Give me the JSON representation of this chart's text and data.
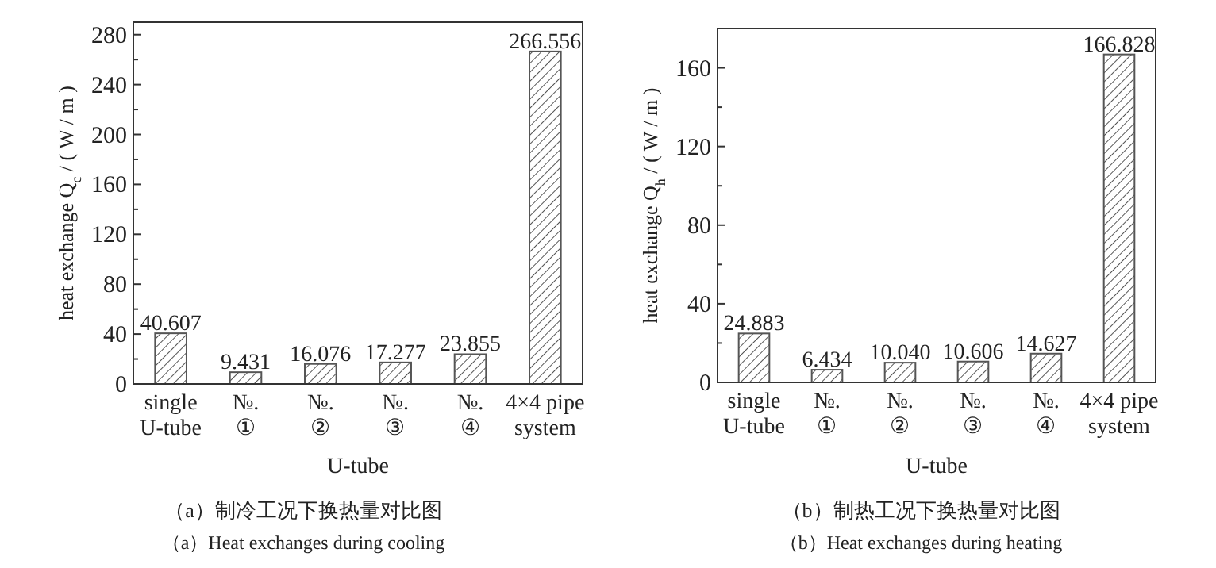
{
  "chart_data": [
    {
      "type": "bar",
      "xlabel": "U-tube",
      "ylabel": "heat exchange Q$_{c}$ / ( W / m )",
      "categories": [
        "single\nU-tube",
        "№.\n①",
        "№.\n②",
        "№.\n③",
        "№.\n④",
        "4×4 pipe\nsystem"
      ],
      "values": [
        40.607,
        9.431,
        16.076,
        17.277,
        23.855,
        266.556
      ],
      "value_labels": [
        "40.607",
        "9.431",
        "16.076",
        "17.277",
        "23.855",
        "266.556"
      ],
      "color": "#555555",
      "ylim": [
        0,
        290
      ],
      "yticks": [
        0,
        {
          "value": 20,
          "label": null
        },
        40,
        {
          "value": 60,
          "label": null
        },
        80,
        {
          "value": 100,
          "label": null
        },
        120,
        {
          "value": 140,
          "label": null
        },
        160,
        {
          "value": 180,
          "label": null
        },
        200,
        {
          "value": 220,
          "label": null
        },
        240,
        {
          "value": 260,
          "label": null
        },
        280
      ],
      "annotations": [
        "（a）制冷工况下换热量对比图",
        "（a）Heat exchanges during cooling"
      ]
    },
    {
      "type": "bar",
      "xlabel": "U-tube",
      "ylabel": "heat exchange Q$_{h}$ / ( W / m )",
      "categories": [
        "single\nU-tube",
        "№.\n①",
        "№.\n②",
        "№.\n③",
        "№.\n④",
        "4×4 pipe\nsystem"
      ],
      "values": [
        24.883,
        6.434,
        10.04,
        10.606,
        14.627,
        166.828
      ],
      "value_labels": [
        "24.883",
        "6.434",
        "10.040",
        "10.606",
        "14.627",
        "166.828"
      ],
      "color": "#555555",
      "ylim": [
        0,
        180
      ],
      "yticks": [
        0,
        {
          "value": 20,
          "label": null
        },
        40,
        {
          "value": 60,
          "label": null
        },
        80,
        {
          "value": 100,
          "label": null
        },
        120,
        {
          "value": 140,
          "label": null
        },
        160
      ],
      "annotations": [
        "（b）制热工况下换热量对比图",
        "（b）Heat exchanges during heating"
      ]
    }
  ]
}
